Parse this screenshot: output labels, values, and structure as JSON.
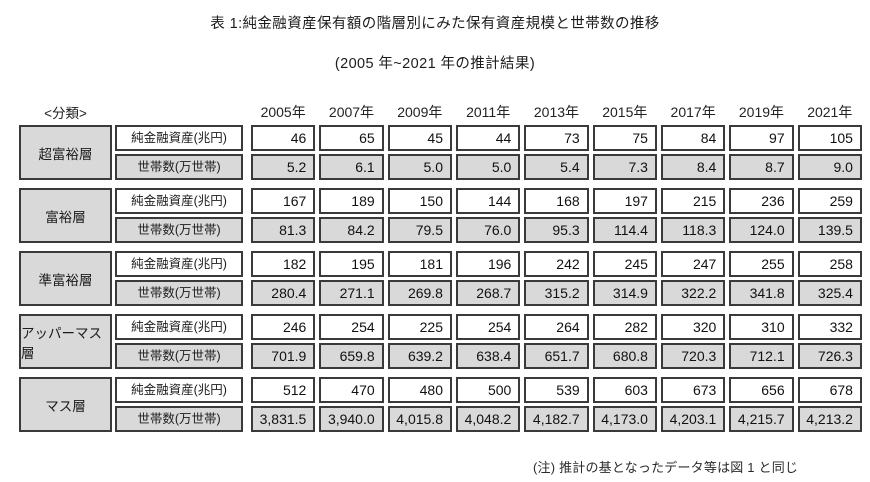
{
  "title": "表 1:純金融資産保有額の階層別にみた保有資産規模と世帯数の推移",
  "subtitle": "(2005 年~2021 年の推計結果)",
  "note": "(注) 推計の基となったデータ等は図 1 と同じ",
  "classification_label": "<分類>",
  "years": [
    "2005年",
    "2007年",
    "2009年",
    "2011年",
    "2013年",
    "2015年",
    "2017年",
    "2019年",
    "2021年"
  ],
  "row_labels": {
    "assets": "純金融資産(兆円)",
    "households": "世帯数(万世帯)"
  },
  "tiers": [
    {
      "name": "超富裕層",
      "assets": [
        "46",
        "65",
        "45",
        "44",
        "73",
        "75",
        "84",
        "97",
        "105"
      ],
      "households": [
        "5.2",
        "6.1",
        "5.0",
        "5.0",
        "5.4",
        "7.3",
        "8.4",
        "8.7",
        "9.0"
      ]
    },
    {
      "name": "富裕層",
      "assets": [
        "167",
        "189",
        "150",
        "144",
        "168",
        "197",
        "215",
        "236",
        "259"
      ],
      "households": [
        "81.3",
        "84.2",
        "79.5",
        "76.0",
        "95.3",
        "114.4",
        "118.3",
        "124.0",
        "139.5"
      ]
    },
    {
      "name": "準富裕層",
      "assets": [
        "182",
        "195",
        "181",
        "196",
        "242",
        "245",
        "247",
        "255",
        "258"
      ],
      "households": [
        "280.4",
        "271.1",
        "269.8",
        "268.7",
        "315.2",
        "314.9",
        "322.2",
        "341.8",
        "325.4"
      ]
    },
    {
      "name": "アッパーマス層",
      "assets": [
        "246",
        "254",
        "225",
        "254",
        "264",
        "282",
        "320",
        "310",
        "332"
      ],
      "households": [
        "701.9",
        "659.8",
        "639.2",
        "638.4",
        "651.7",
        "680.8",
        "720.3",
        "712.1",
        "726.3"
      ]
    },
    {
      "name": "マス層",
      "assets": [
        "512",
        "470",
        "480",
        "500",
        "539",
        "603",
        "673",
        "656",
        "678"
      ],
      "households": [
        "3,831.5",
        "3,940.0",
        "4,015.8",
        "4,048.2",
        "4,182.7",
        "4,173.0",
        "4,203.1",
        "4,215.7",
        "4,213.2"
      ]
    }
  ],
  "colors": {
    "cell_gray": "#d9d9d9",
    "border": "#3a3a3a",
    "text": "#1c1c1c"
  }
}
